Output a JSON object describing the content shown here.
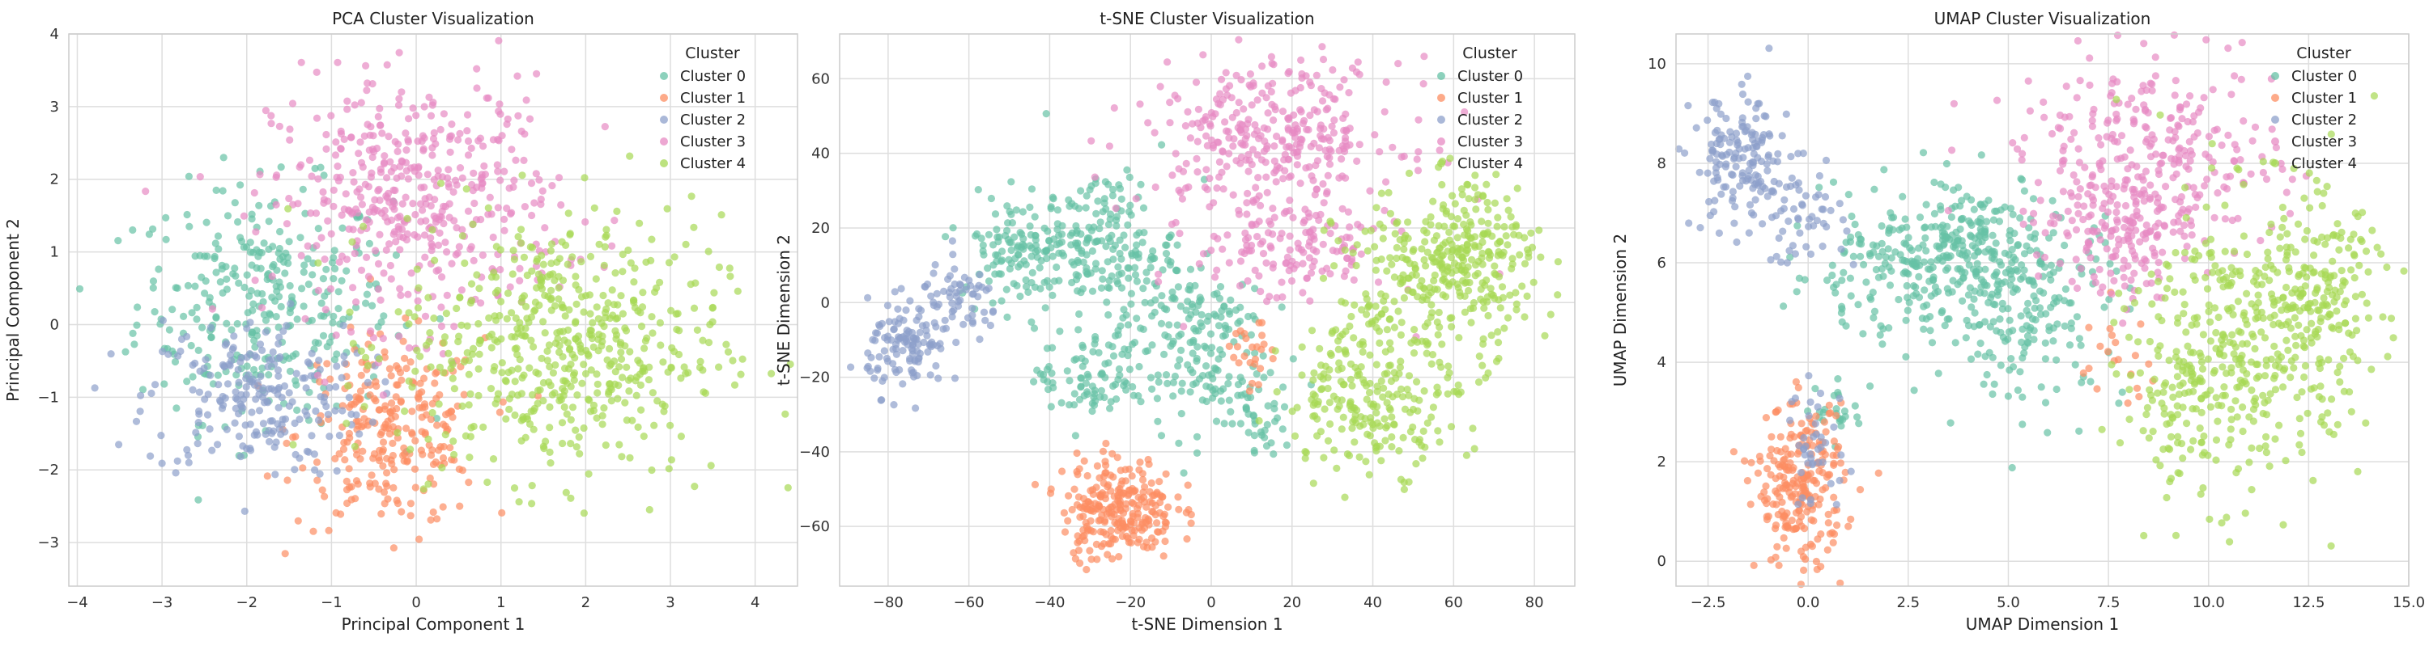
{
  "chart_data": [
    {
      "type": "scatter",
      "title": "PCA Cluster Visualization",
      "xlabel": "Principal Component 1",
      "ylabel": "Principal Component 2",
      "xlim": [
        -4.1,
        4.5
      ],
      "ylim": [
        -3.6,
        4.0
      ],
      "xticks": [
        -4,
        -3,
        -2,
        -1,
        0,
        1,
        2,
        3,
        4
      ],
      "yticks": [
        -3,
        -2,
        -1,
        0,
        1,
        2,
        3,
        4
      ],
      "grid": true,
      "legend_title": "Cluster",
      "legend_position": "top-right",
      "series": [
        {
          "name": "Cluster 0",
          "color": "#66c2a5",
          "blobs": [
            {
              "cx": -1.8,
              "cy": 0.3,
              "sx": 0.75,
              "sy": 0.8,
              "n": 320
            }
          ]
        },
        {
          "name": "Cluster 1",
          "color": "#fc8d62",
          "blobs": [
            {
              "cx": -0.3,
              "cy": -1.5,
              "sx": 0.55,
              "sy": 0.65,
              "n": 260
            }
          ]
        },
        {
          "name": "Cluster 2",
          "color": "#8da0cb",
          "blobs": [
            {
              "cx": -1.9,
              "cy": -1.0,
              "sx": 0.65,
              "sy": 0.55,
              "n": 220
            }
          ]
        },
        {
          "name": "Cluster 3",
          "color": "#e78ac3",
          "blobs": [
            {
              "cx": 0.0,
              "cy": 1.7,
              "sx": 0.85,
              "sy": 0.85,
              "n": 460
            }
          ]
        },
        {
          "name": "Cluster 4",
          "color": "#a6d854",
          "blobs": [
            {
              "cx": 1.7,
              "cy": -0.3,
              "sx": 0.95,
              "sy": 0.9,
              "n": 560
            }
          ]
        }
      ]
    },
    {
      "type": "scatter",
      "title": "t-SNE Cluster Visualization",
      "xlabel": "t-SNE Dimension 1",
      "ylabel": "t-SNE Dimension 2",
      "xlim": [
        -92,
        90
      ],
      "ylim": [
        -76,
        72
      ],
      "xticks": [
        -80,
        -60,
        -40,
        -20,
        0,
        20,
        40,
        60,
        80
      ],
      "yticks": [
        -60,
        -40,
        -20,
        0,
        20,
        40,
        60
      ],
      "grid": true,
      "legend_title": "Cluster",
      "legend_position": "top-right",
      "series": [
        {
          "name": "Cluster 0",
          "color": "#66c2a5",
          "blobs": [
            {
              "cx": -45,
              "cy": 15,
              "sx": 9,
              "sy": 7,
              "n": 150
            },
            {
              "cx": -25,
              "cy": 15,
              "sx": 8,
              "sy": 10,
              "n": 150
            },
            {
              "cx": -5,
              "cy": -10,
              "sx": 9,
              "sy": 12,
              "n": 180
            },
            {
              "cx": -30,
              "cy": -20,
              "sx": 7,
              "sy": 7,
              "n": 90
            },
            {
              "cx": 12,
              "cy": -30,
              "sx": 4,
              "sy": 5,
              "n": 40
            }
          ]
        },
        {
          "name": "Cluster 1",
          "color": "#fc8d62",
          "blobs": [
            {
              "cx": -23,
              "cy": -55,
              "sx": 7,
              "sy": 7,
              "n": 260
            },
            {
              "cx": 10,
              "cy": -15,
              "sx": 3,
              "sy": 5,
              "n": 25
            }
          ]
        },
        {
          "name": "Cluster 2",
          "color": "#8da0cb",
          "blobs": [
            {
              "cx": -75,
              "cy": -12,
              "sx": 5,
              "sy": 6,
              "n": 120
            },
            {
              "cx": -62,
              "cy": 0,
              "sx": 5,
              "sy": 5,
              "n": 60
            }
          ]
        },
        {
          "name": "Cluster 3",
          "color": "#e78ac3",
          "blobs": [
            {
              "cx": 15,
              "cy": 45,
              "sx": 16,
              "sy": 10,
              "n": 320
            },
            {
              "cx": 20,
              "cy": 15,
              "sx": 12,
              "sy": 8,
              "n": 150
            }
          ]
        },
        {
          "name": "Cluster 4",
          "color": "#a6d854",
          "blobs": [
            {
              "cx": 55,
              "cy": 5,
              "sx": 12,
              "sy": 12,
              "n": 260
            },
            {
              "cx": 40,
              "cy": -25,
              "sx": 11,
              "sy": 10,
              "n": 220
            },
            {
              "cx": 65,
              "cy": 15,
              "sx": 7,
              "sy": 10,
              "n": 120
            }
          ]
        }
      ]
    },
    {
      "type": "scatter",
      "title": "UMAP Cluster Visualization",
      "xlabel": "UMAP Dimension 1",
      "ylabel": "UMAP Dimension 2",
      "xlim": [
        -3.3,
        15.0
      ],
      "ylim": [
        -0.5,
        10.6
      ],
      "xticks": [
        -2.5,
        0.0,
        2.5,
        5.0,
        7.5,
        10.0,
        12.5,
        15.0
      ],
      "xtick_labels": [
        "−2.5",
        "0.0",
        "2.5",
        "5.0",
        "7.5",
        "10.0",
        "12.5",
        "15.0"
      ],
      "yticks": [
        0,
        2,
        4,
        6,
        8,
        10
      ],
      "grid": true,
      "legend_title": "Cluster",
      "legend_position": "top-right",
      "series": [
        {
          "name": "Cluster 0",
          "color": "#66c2a5",
          "blobs": [
            {
              "cx": 2.5,
              "cy": 5.8,
              "sx": 1.5,
              "sy": 0.6,
              "n": 220
            },
            {
              "cx": 5.5,
              "cy": 5.2,
              "sx": 1.2,
              "sy": 1.0,
              "n": 200
            },
            {
              "cx": 4.0,
              "cy": 6.8,
              "sx": 1.0,
              "sy": 0.5,
              "n": 100
            },
            {
              "cx": 0.8,
              "cy": 3.0,
              "sx": 0.3,
              "sy": 0.3,
              "n": 25
            }
          ]
        },
        {
          "name": "Cluster 1",
          "color": "#fc8d62",
          "blobs": [
            {
              "cx": -0.2,
              "cy": 1.5,
              "sx": 0.55,
              "sy": 0.8,
              "n": 240
            },
            {
              "cx": 7.7,
              "cy": 4.0,
              "sx": 0.5,
              "sy": 0.5,
              "n": 20
            }
          ]
        },
        {
          "name": "Cluster 2",
          "color": "#8da0cb",
          "blobs": [
            {
              "cx": -1.7,
              "cy": 8.0,
              "sx": 0.6,
              "sy": 0.7,
              "n": 150
            },
            {
              "cx": -0.3,
              "cy": 7.0,
              "sx": 0.6,
              "sy": 0.5,
              "n": 60
            },
            {
              "cx": 0.2,
              "cy": 2.2,
              "sx": 0.4,
              "sy": 0.7,
              "n": 40
            }
          ]
        },
        {
          "name": "Cluster 3",
          "color": "#e78ac3",
          "blobs": [
            {
              "cx": 8.5,
              "cy": 8.0,
              "sx": 1.6,
              "sy": 1.0,
              "n": 320
            },
            {
              "cx": 7.8,
              "cy": 6.5,
              "sx": 0.8,
              "sy": 0.6,
              "n": 100
            }
          ]
        },
        {
          "name": "Cluster 4",
          "color": "#a6d854",
          "blobs": [
            {
              "cx": 11.0,
              "cy": 4.5,
              "sx": 1.4,
              "sy": 1.5,
              "n": 380
            },
            {
              "cx": 12.8,
              "cy": 5.5,
              "sx": 0.7,
              "sy": 0.9,
              "n": 120
            },
            {
              "cx": 9.3,
              "cy": 3.0,
              "sx": 0.7,
              "sy": 0.9,
              "n": 80
            }
          ]
        }
      ]
    }
  ]
}
